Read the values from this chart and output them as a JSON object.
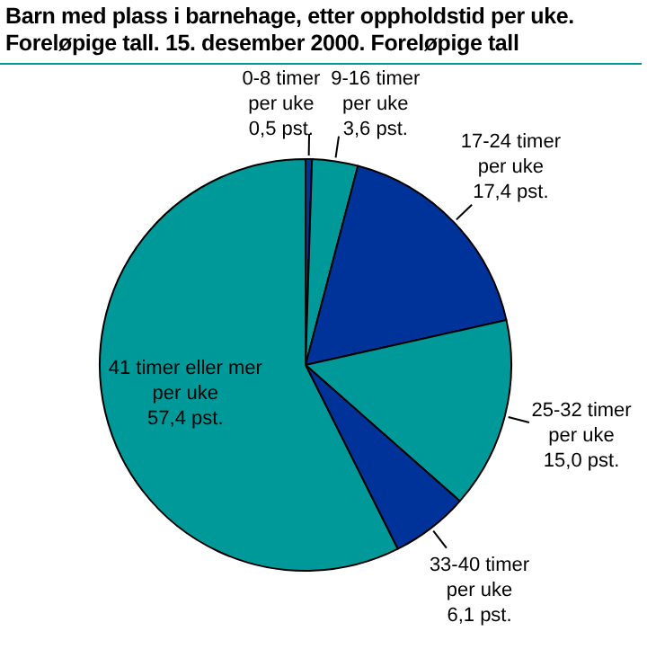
{
  "chart_data": {
    "type": "pie",
    "title": "Barn med plass i barnehage, etter oppholdstid per uke. Foreløpige tall. 15. desember 2000. Foreløpige tall",
    "categories": [
      "0-8 timer per uke",
      "9-16 timer per uke",
      "17-24 timer per uke",
      "25-32 timer per uke",
      "33-40 timer per uke",
      "41 timer eller mer per uke"
    ],
    "values": [
      0.5,
      3.6,
      17.4,
      15.0,
      6.1,
      57.4
    ],
    "colors": [
      "#003399",
      "#009999",
      "#003399",
      "#009999",
      "#003399",
      "#009999"
    ],
    "value_labels": [
      "0,5 pst.",
      "3,6 pst.",
      "17,4 pst.",
      "15,0 pst.",
      "6,1 pst.",
      "57,4 pst."
    ]
  }
}
